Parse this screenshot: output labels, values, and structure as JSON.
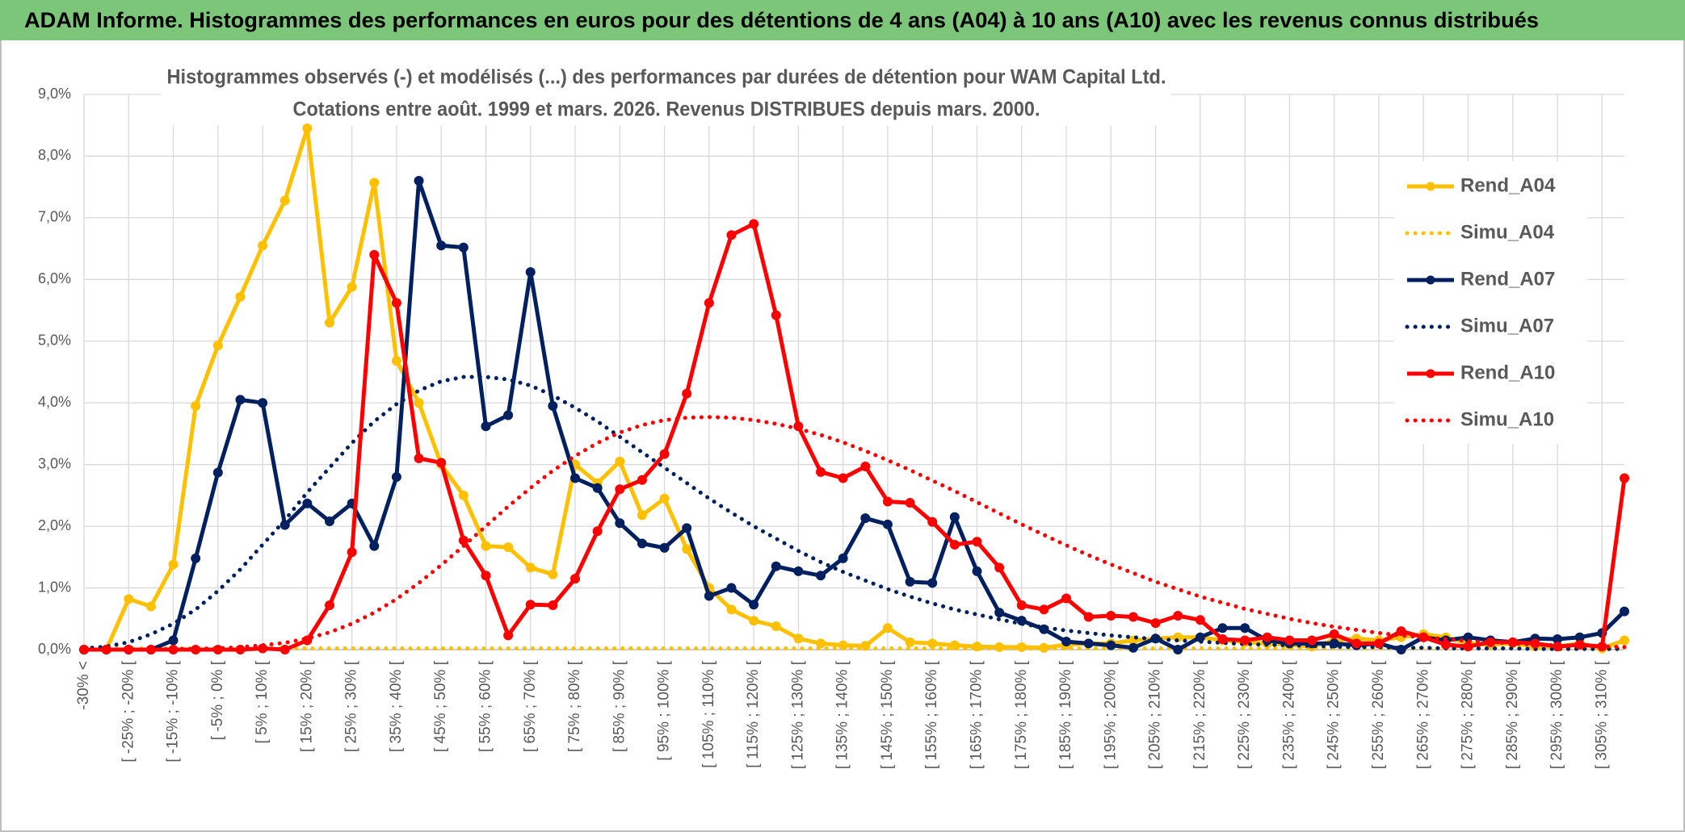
{
  "chart_data": {
    "type": "line",
    "title": "ADAM Informe. Histogrammes des performances en euros pour des détentions de 4 ans (A04) à 10 ans (A10) avec les revenus connus distribués",
    "subtitle": [
      "Histogrammes observés (-) et modélisés (...) des performances par durées de détention pour WAM Capital Ltd.",
      "Cotations entre août. 1999 et mars. 2026. Revenus DISTRIBUES depuis mars. 2000."
    ],
    "categories": [
      "-30% <",
      null,
      "[ -25% ; -20% [",
      null,
      "[ -15% ; -10% [",
      null,
      "[ -5% ; 0% [",
      null,
      "[ 5% ; 10% [",
      null,
      "[ 15% ; 20% [",
      null,
      "[ 25% ; 30% [",
      null,
      "[ 35% ; 40% [",
      null,
      "[ 45% ; 50% [",
      null,
      "[ 55% ; 60% [",
      null,
      "[ 65% ; 70% [",
      null,
      "[ 75% ; 80% [",
      null,
      "[ 85% ; 90% [",
      null,
      "[ 95% ; 100% [",
      null,
      "[ 105% ; 110% [",
      null,
      "[ 115% ; 120% [",
      null,
      "[ 125% ; 130% [",
      null,
      "[ 135% ; 140% [",
      null,
      "[ 145% ; 150% [",
      null,
      "[ 155% ; 160% [",
      null,
      "[ 165% ; 170% [",
      null,
      "[ 175% ; 180% [",
      null,
      "[ 185% ; 190% [",
      null,
      "[ 195% ; 200% [",
      null,
      "[ 205% ; 210% [",
      null,
      "[ 215% ; 220% [",
      null,
      "[ 225% ; 230% [",
      null,
      "[ 235% ; 240% [",
      null,
      "[ 245% ; 250% [",
      null,
      "[ 255% ; 260% [",
      null,
      "[ 265% ; 270% [",
      null,
      "[ 275% ; 280% [",
      null,
      "[ 285% ; 290% [",
      null,
      "[ 295% ; 300% [",
      null,
      "[ 305% ; 310% [",
      null
    ],
    "series": [
      {
        "name": "Rend_A04",
        "color": "#FFC000",
        "style": "solid",
        "markers": true,
        "values": [
          0,
          0,
          0.82,
          0.7,
          1.38,
          3.95,
          4.93,
          5.72,
          6.55,
          7.28,
          8.45,
          5.3,
          5.88,
          7.57,
          4.68,
          4.0,
          3.0,
          2.5,
          1.68,
          1.66,
          1.33,
          1.22,
          3.0,
          2.7,
          3.05,
          2.18,
          2.45,
          1.63,
          1.0,
          0.65,
          0.47,
          0.38,
          0.18,
          0.1,
          0.07,
          0.06,
          0.35,
          0.12,
          0.1,
          0.07,
          0.05,
          0.04,
          0.04,
          0.03,
          0.08,
          0.1,
          0.1,
          0.15,
          0.18,
          0.2,
          0.2,
          0.15,
          0.12,
          0.1,
          0.08,
          0.05,
          0.15,
          0.18,
          0.15,
          0.2,
          0.25,
          0.2,
          0.1,
          0.08,
          0.1,
          0.05,
          0.05,
          0.1,
          0.02,
          0.15
        ]
      },
      {
        "name": "Simu_A04",
        "color": "#FFC000",
        "style": "dotted",
        "markers": false,
        "values": [
          0.02,
          0.02,
          0.02,
          0.02,
          0.02,
          0.02,
          0.02,
          0.02,
          0.02,
          0.02,
          0.02,
          0.02,
          0.02,
          0.02,
          0.02,
          0.02,
          0.02,
          0.02,
          0.02,
          0.02,
          0.02,
          0.02,
          0.02,
          0.02,
          0.02,
          0.02,
          0.02,
          0.02,
          0.02,
          0.02,
          0.02,
          0.02,
          0.02,
          0.02,
          0.02,
          0.02,
          0.02,
          0.02,
          0.02,
          0.02,
          0.02,
          0.02,
          0.02,
          0.02,
          0.02,
          0.02,
          0.02,
          0.02,
          0.02,
          0.02,
          0.02,
          0.02,
          0.02,
          0.02,
          0.02,
          0.02,
          0.02,
          0.02,
          0.02,
          0.02,
          0.02,
          0.02,
          0.02,
          0.02,
          0.02,
          0.02,
          0.02,
          0.02,
          0.02,
          0.02
        ]
      },
      {
        "name": "Rend_A07",
        "color": "#002060",
        "style": "solid",
        "markers": true,
        "values": [
          0,
          0,
          0,
          0,
          0.15,
          1.48,
          2.87,
          4.05,
          4.0,
          2.02,
          2.37,
          2.08,
          2.37,
          1.68,
          2.8,
          7.6,
          6.55,
          6.52,
          3.62,
          3.8,
          6.12,
          3.95,
          2.78,
          2.62,
          2.05,
          1.72,
          1.65,
          1.97,
          0.87,
          1.0,
          0.73,
          1.35,
          1.27,
          1.2,
          1.48,
          2.13,
          2.03,
          1.1,
          1.08,
          2.15,
          1.27,
          0.6,
          0.47,
          0.33,
          0.13,
          0.1,
          0.07,
          0.03,
          0.18,
          0.0,
          0.2,
          0.35,
          0.35,
          0.15,
          0.1,
          0.1,
          0.1,
          0.07,
          0.1,
          0.0,
          0.2,
          0.15,
          0.2,
          0.15,
          0.12,
          0.18,
          0.17,
          0.2,
          0.27,
          0.62
        ]
      },
      {
        "name": "Simu_A07",
        "color": "#002060",
        "style": "dotted",
        "markers": false,
        "values": [
          0.02,
          0.05,
          0.12,
          0.25,
          0.42,
          0.65,
          0.95,
          1.3,
          1.7,
          2.1,
          2.55,
          2.95,
          3.35,
          3.7,
          3.98,
          4.2,
          4.35,
          4.42,
          4.42,
          4.38,
          4.28,
          4.12,
          3.92,
          3.7,
          3.45,
          3.2,
          2.95,
          2.7,
          2.45,
          2.22,
          2.0,
          1.8,
          1.6,
          1.42,
          1.26,
          1.12,
          0.98,
          0.86,
          0.75,
          0.65,
          0.57,
          0.49,
          0.42,
          0.36,
          0.31,
          0.27,
          0.23,
          0.2,
          0.17,
          0.15,
          0.13,
          0.11,
          0.09,
          0.08,
          0.07,
          0.06,
          0.05,
          0.04,
          0.04,
          0.03,
          0.03,
          0.02,
          0.02,
          0.02,
          0.02,
          0.01,
          0.01,
          0.01,
          0.01,
          0.01
        ]
      },
      {
        "name": "Rend_A10",
        "color": "#FF0000",
        "style": "solid",
        "markers": true,
        "values": [
          0,
          0,
          0,
          0,
          0,
          0,
          0,
          0,
          0.02,
          0,
          0.15,
          0.72,
          1.58,
          6.4,
          5.62,
          3.1,
          3.03,
          1.77,
          1.2,
          0.23,
          0.73,
          0.72,
          1.15,
          1.92,
          2.6,
          2.75,
          3.17,
          4.15,
          5.62,
          6.72,
          6.9,
          5.42,
          3.62,
          2.88,
          2.78,
          2.97,
          2.4,
          2.38,
          2.07,
          1.7,
          1.75,
          1.33,
          0.72,
          0.65,
          0.83,
          0.53,
          0.55,
          0.53,
          0.43,
          0.55,
          0.48,
          0.17,
          0.15,
          0.2,
          0.15,
          0.15,
          0.25,
          0.1,
          0.1,
          0.3,
          0.2,
          0.08,
          0.05,
          0.12,
          0.12,
          0.1,
          0.05,
          0.08,
          0.05,
          2.78
        ]
      },
      {
        "name": "Simu_A10",
        "color": "#FF0000",
        "style": "dotted",
        "markers": false,
        "values": [
          0,
          0,
          0,
          0,
          0.01,
          0.01,
          0.02,
          0.04,
          0.07,
          0.11,
          0.18,
          0.28,
          0.42,
          0.6,
          0.82,
          1.08,
          1.37,
          1.68,
          2.0,
          2.32,
          2.62,
          2.9,
          3.14,
          3.35,
          3.52,
          3.64,
          3.72,
          3.76,
          3.77,
          3.76,
          3.72,
          3.66,
          3.58,
          3.48,
          3.36,
          3.22,
          3.07,
          2.91,
          2.74,
          2.57,
          2.39,
          2.21,
          2.03,
          1.86,
          1.69,
          1.53,
          1.38,
          1.24,
          1.1,
          0.98,
          0.86,
          0.76,
          0.66,
          0.58,
          0.5,
          0.43,
          0.37,
          0.32,
          0.27,
          0.23,
          0.2,
          0.17,
          0.14,
          0.12,
          0.1,
          0.08,
          0.07,
          0.06,
          0.05,
          0.04
        ]
      }
    ],
    "ylim": [
      0,
      9
    ],
    "yticks": [
      {
        "value": 0,
        "label": "0,0%"
      },
      {
        "value": 1,
        "label": "1,0%"
      },
      {
        "value": 2,
        "label": "2,0%"
      },
      {
        "value": 3,
        "label": "3,0%"
      },
      {
        "value": 4,
        "label": "4,0%"
      },
      {
        "value": 5,
        "label": "5,0%"
      },
      {
        "value": 6,
        "label": "6,0%"
      },
      {
        "value": 7,
        "label": "7,0%"
      },
      {
        "value": 8,
        "label": "8,0%"
      },
      {
        "value": 9,
        "label": "9,0%"
      }
    ],
    "grid": true,
    "legend": "right"
  }
}
